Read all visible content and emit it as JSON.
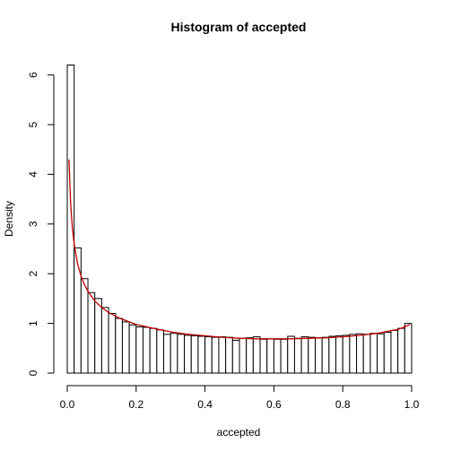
{
  "chart_data": {
    "type": "bar",
    "title": "Histogram of accepted",
    "xlabel": "accepted",
    "ylabel": "Density",
    "xlim": [
      0,
      1
    ],
    "ylim": [
      0,
      6.2
    ],
    "xticks": [
      "0.0",
      "0.2",
      "0.4",
      "0.6",
      "0.8",
      "1.0"
    ],
    "xtick_values": [
      0,
      0.2,
      0.4,
      0.6,
      0.8,
      1.0
    ],
    "yticks": [
      "0",
      "1",
      "2",
      "3",
      "4",
      "5",
      "6"
    ],
    "ytick_values": [
      0,
      1,
      2,
      3,
      4,
      5,
      6
    ],
    "bin_width": 0.02,
    "bin_start": 0,
    "values": [
      6.2,
      2.52,
      1.9,
      1.62,
      1.5,
      1.32,
      1.2,
      1.1,
      1.03,
      0.97,
      0.93,
      0.92,
      0.9,
      0.87,
      0.78,
      0.8,
      0.78,
      0.76,
      0.75,
      0.74,
      0.73,
      0.72,
      0.73,
      0.72,
      0.66,
      0.7,
      0.71,
      0.73,
      0.68,
      0.69,
      0.68,
      0.68,
      0.74,
      0.7,
      0.73,
      0.72,
      0.71,
      0.72,
      0.74,
      0.75,
      0.76,
      0.78,
      0.79,
      0.78,
      0.8,
      0.79,
      0.82,
      0.86,
      0.9,
      1.0
    ],
    "density_curve": {
      "color": "#c00000",
      "x": [
        0.005,
        0.01,
        0.015,
        0.02,
        0.03,
        0.04,
        0.05,
        0.06,
        0.08,
        0.1,
        0.12,
        0.15,
        0.2,
        0.25,
        0.3,
        0.35,
        0.4,
        0.45,
        0.5,
        0.55,
        0.6,
        0.65,
        0.7,
        0.75,
        0.8,
        0.85,
        0.9,
        0.93,
        0.96,
        0.98,
        0.995
      ],
      "y": [
        4.3,
        3.4,
        2.9,
        2.6,
        2.2,
        1.95,
        1.78,
        1.65,
        1.45,
        1.32,
        1.22,
        1.11,
        0.98,
        0.9,
        0.83,
        0.78,
        0.75,
        0.72,
        0.7,
        0.69,
        0.69,
        0.69,
        0.7,
        0.71,
        0.73,
        0.76,
        0.8,
        0.84,
        0.88,
        0.93,
        0.98
      ]
    },
    "grid": false,
    "legend": "none"
  }
}
